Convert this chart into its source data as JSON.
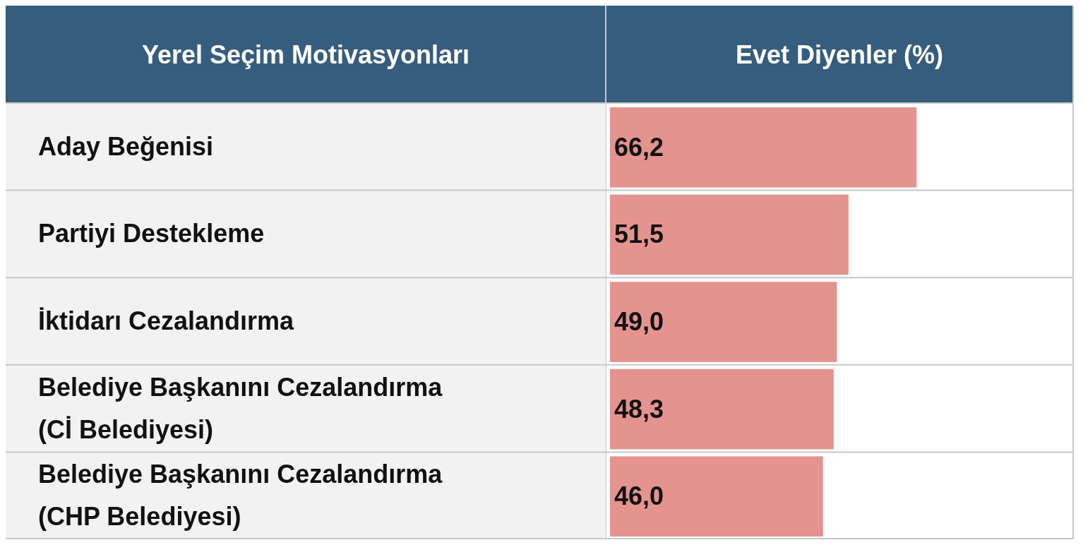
{
  "chart_data": {
    "type": "bar",
    "orientation": "horizontal",
    "ylabel": "Yerel Seçim Motivasyonları",
    "xlabel": "Evet Diyenler (%)",
    "categories": [
      "Aday Beğenisi",
      "Partiyi Destekleme",
      "İktidarı Cezalandırma",
      "Belediye Başkanını Cezalandırma (Cİ Belediyesi)",
      "Belediye Başkanını Cezalandırma (CHP Belediyesi)"
    ],
    "values": [
      66.2,
      51.5,
      49.0,
      48.3,
      46.0
    ],
    "value_labels": [
      "66,2",
      "51,5",
      "49,0",
      "48,3",
      "46,0"
    ],
    "color": "#e5938f",
    "xlim": [
      0,
      100
    ]
  }
}
